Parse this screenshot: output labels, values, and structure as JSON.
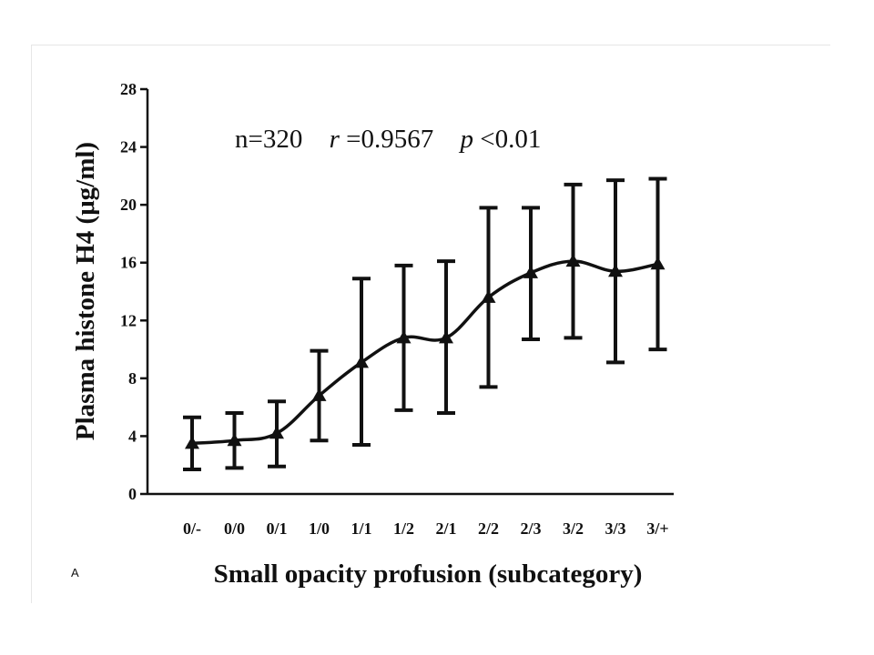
{
  "chart_data": {
    "type": "line",
    "title": "",
    "xlabel": "Small opacity profusion (subcategory)",
    "ylabel": "Plasma histone H4 (μg/ml)",
    "ylim": [
      0,
      28
    ],
    "yticks": [
      "0",
      "4",
      "8",
      "12",
      "16",
      "20",
      "24",
      "28"
    ],
    "categories": [
      "0/-",
      "0/0",
      "0/1",
      "1/0",
      "1/1",
      "1/2",
      "2/1",
      "2/2",
      "2/3",
      "3/2",
      "3/3",
      "3/+"
    ],
    "series": [
      {
        "name": "Plasma histone H4",
        "marker": "triangle",
        "values": [
          3.5,
          3.7,
          4.2,
          6.8,
          9.1,
          10.8,
          10.8,
          13.6,
          15.3,
          16.1,
          15.4,
          15.9
        ],
        "error_low": [
          1.7,
          1.8,
          1.9,
          3.7,
          3.4,
          5.8,
          5.6,
          7.4,
          10.7,
          10.8,
          9.1,
          10.0
        ],
        "error_high": [
          5.3,
          5.6,
          6.4,
          9.9,
          14.9,
          15.8,
          16.1,
          19.8,
          19.8,
          21.4,
          21.7,
          21.8
        ]
      }
    ],
    "annotation": {
      "n": "n=320",
      "r_symbol": "r",
      "r_value": "=0.9567",
      "p_symbol": "p",
      "p_value": "<0.01"
    },
    "grid": false,
    "legend": "none"
  },
  "panel_label": "A"
}
